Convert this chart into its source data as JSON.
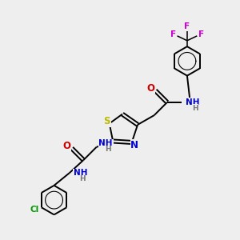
{
  "bg_color": "#eeeeee",
  "bond_color": "#000000",
  "N_color": "#0000cc",
  "O_color": "#cc0000",
  "S_color": "#bbbb00",
  "Cl_color": "#009900",
  "F_color": "#cc00cc",
  "H_color": "#777777",
  "line_width": 1.4,
  "font_size": 7.5,
  "xlim": [
    0,
    10
  ],
  "ylim": [
    0,
    10
  ]
}
